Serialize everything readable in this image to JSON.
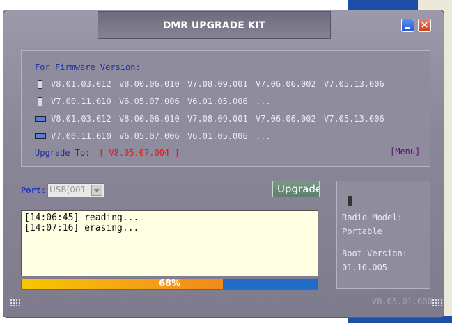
{
  "window": {
    "title": "DMR UPGRADE KIT",
    "close_label": "×"
  },
  "firmware": {
    "heading": "For Firmware Version:",
    "rows": [
      [
        "V8.01.03.012",
        "V8.00.06.010",
        "V7.08.09.001",
        "V7.06.06.002",
        "V7.05.13.006"
      ],
      [
        "V7.00.11.010",
        "V6.05.07.006",
        "V6.01.05.006",
        "..."
      ],
      [
        "V8.01.03.012",
        "V8.00.06.010",
        "V7.08.09.001",
        "V7.06.06.002",
        "V7.05.13.006"
      ],
      [
        "V7.00.11.010",
        "V6.05.07.006",
        "V6.01.05.006",
        "..."
      ]
    ],
    "upgrade_label": "Upgrade To:",
    "upgrade_target": "[ V8.05.07.004 ]",
    "menu": "[Menu]"
  },
  "port": {
    "label": "Port:",
    "value": "USB(001"
  },
  "upgrade_button": "Upgrade",
  "log": [
    "[14:06:45] reading...",
    "[14:07:16] erasing..."
  ],
  "progress": {
    "value": 68,
    "label": "68%"
  },
  "info": {
    "model_label": "Radio Model:",
    "model": "Portable",
    "boot_label": "Boot Version:",
    "boot": "01.10.005"
  },
  "version": "V8.05.01.000"
}
